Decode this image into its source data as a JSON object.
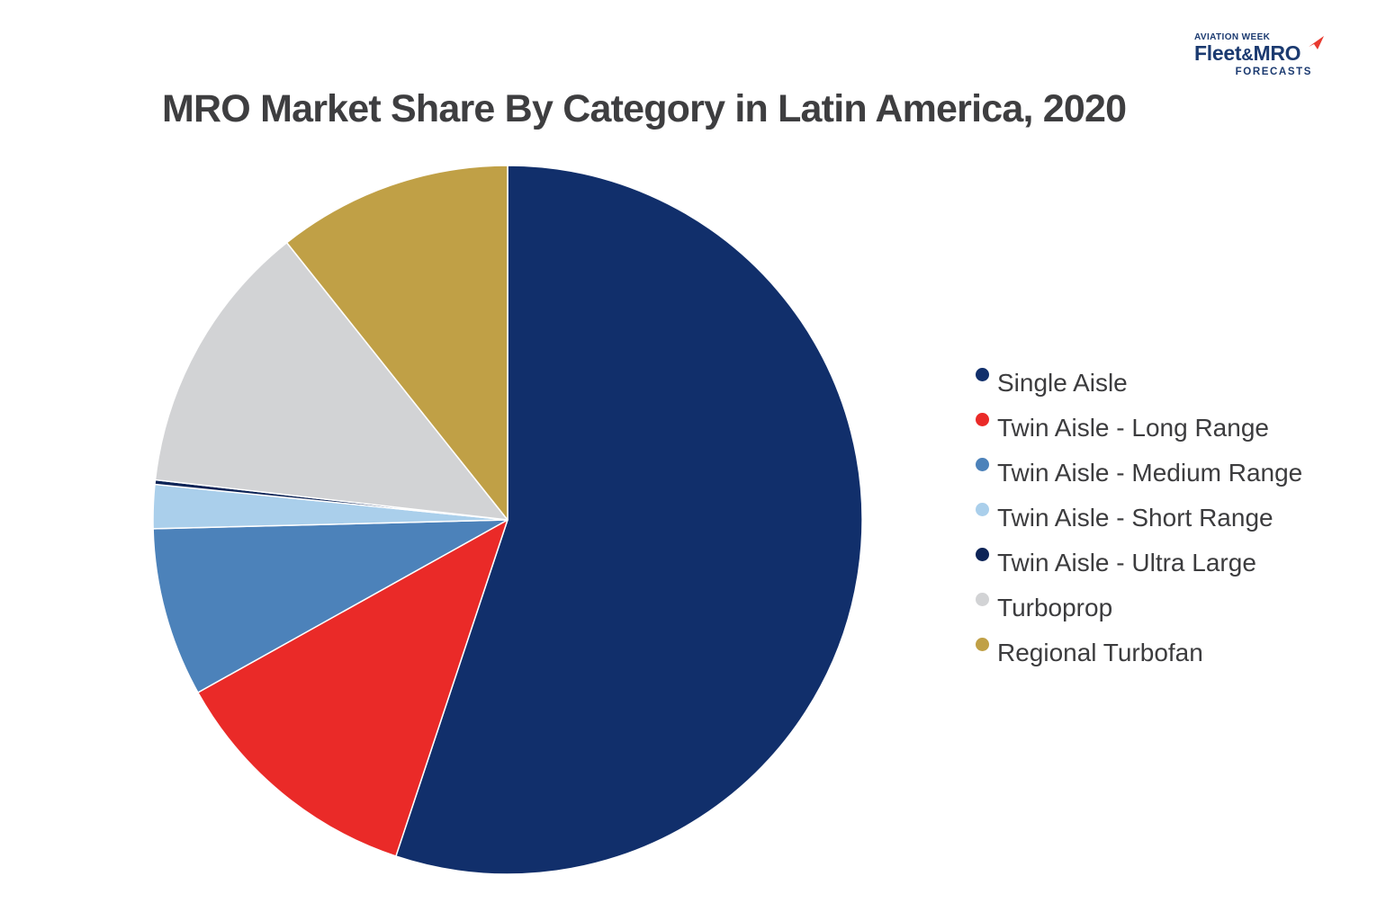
{
  "logo": {
    "line1": "AVIATION WEEK",
    "brand_fleet": "Fleet",
    "brand_amp": "&",
    "brand_mro": "MRO",
    "line3": "FORECASTS",
    "color": "#1B3A70",
    "arrow_color": "#E8392F",
    "arrow_icon": "paper-plane-swoosh"
  },
  "title": {
    "text": "MRO Market Share By Category in Latin America, 2020",
    "color": "#3E3E40"
  },
  "chart_data": {
    "type": "pie",
    "title": "MRO Market Share By Category in Latin America, 2020",
    "unit": "percent of MRO market share",
    "start_angle_deg": 0,
    "direction": "clockwise",
    "legend_position": "right",
    "slice_separator_color": "#ffffff",
    "slices": [
      {
        "label": "Single Aisle",
        "value": 55.1,
        "color": "#112F6B"
      },
      {
        "label": "Twin Aisle - Long Range",
        "value": 11.8,
        "color": "#EA2A28"
      },
      {
        "label": "Twin Aisle - Medium Range",
        "value": 7.7,
        "color": "#4C82BA"
      },
      {
        "label": "Twin Aisle - Short Range",
        "value": 2.0,
        "color": "#AACFEB"
      },
      {
        "label": "Twin Aisle - Ultra Large",
        "value": 0.2,
        "color": "#0D2457"
      },
      {
        "label": "Turboprop",
        "value": 12.5,
        "color": "#D2D3D5"
      },
      {
        "label": "Regional Turbofan",
        "value": 10.7,
        "color": "#C0A046"
      }
    ],
    "legend_text_color": "#3C3C3E"
  }
}
